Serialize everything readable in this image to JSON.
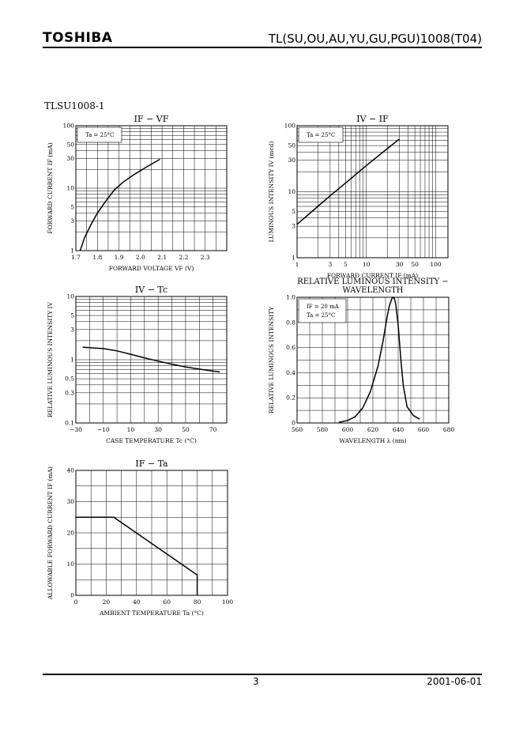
{
  "header": {
    "logo": "TOSHIBA",
    "title": "TL(SU,OU,AU,YU,GU,PGU)1008(T04)"
  },
  "part_number": "TLSU1008-1",
  "footer": {
    "page": "3",
    "date": "2001-06-01"
  },
  "chart_data": [
    {
      "id": "if_vf",
      "type": "line",
      "title": "IF  −  VF",
      "xlabel": "FORWARD VOLTAGE   VF   (V)",
      "ylabel": "FORWARD CURRENT   IF   (mA)",
      "xscale": "linear",
      "yscale": "log",
      "xlim": [
        1.7,
        2.4
      ],
      "ylim": [
        1,
        100
      ],
      "xticks": [
        1.7,
        1.8,
        1.9,
        2.0,
        2.1,
        2.2,
        2.3
      ],
      "xticklabels": [
        "1.7",
        "1.8",
        "1.9",
        "2.0",
        "2.1",
        "2.2",
        "2.3"
      ],
      "yticks": [
        1,
        3,
        5,
        10,
        30,
        50,
        100
      ],
      "yticklabels": [
        "1",
        "3",
        "5",
        "10",
        "30",
        "50",
        "100"
      ],
      "annotation": "Ta = 25°C",
      "series": [
        {
          "name": "IF",
          "x": [
            1.72,
            1.74,
            1.77,
            1.8,
            1.84,
            1.88,
            1.92,
            1.97,
            2.03,
            2.09
          ],
          "y": [
            1,
            1.6,
            2.6,
            4.0,
            6.3,
            9.5,
            12.5,
            16.5,
            22,
            29
          ]
        }
      ]
    },
    {
      "id": "iv_if",
      "type": "line",
      "title": "IV  −  IF",
      "xlabel": "FORWARD CURRENT   IF   (mA)",
      "ylabel": "LUMINOUS INTENSITY   IV   (mcd)",
      "xscale": "log",
      "yscale": "log",
      "xlim": [
        1,
        150
      ],
      "ylim": [
        1,
        100
      ],
      "xticks": [
        1,
        3,
        5,
        10,
        30,
        50,
        100
      ],
      "xticklabels": [
        "1",
        "3",
        "5",
        "10",
        "30",
        "50",
        "100"
      ],
      "yticks": [
        1,
        3,
        5,
        10,
        30,
        50,
        100
      ],
      "yticklabels": [
        "1",
        "3",
        "5",
        "10",
        "30",
        "50",
        "100"
      ],
      "annotation": "Ta = 25°C",
      "series": [
        {
          "name": "IV",
          "x": [
            1,
            2,
            3,
            5,
            10,
            20,
            30
          ],
          "y": [
            3.2,
            6.0,
            8.7,
            13.5,
            25,
            45,
            63
          ]
        }
      ]
    },
    {
      "id": "iv_tc",
      "type": "line",
      "title": "IV  −  Tc",
      "xlabel": "CASE TEMPERATURE   Tc   (°C)",
      "ylabel": "RELATIVE LUMINOUS INTENSITY   IV",
      "xscale": "linear",
      "yscale": "log",
      "xlim": [
        -30,
        80
      ],
      "ylim": [
        0.1,
        10
      ],
      "xticks": [
        -30,
        -10,
        10,
        30,
        50,
        70
      ],
      "xticklabels": [
        "−30",
        "−10",
        "10",
        "30",
        "50",
        "70"
      ],
      "yticks": [
        0.1,
        0.3,
        0.5,
        1,
        3,
        5,
        10
      ],
      "yticklabels": [
        "0.1",
        "0.3",
        "0.5",
        "1",
        "3",
        "5",
        "10"
      ],
      "series": [
        {
          "name": "IV",
          "x": [
            -25,
            -10,
            0,
            10,
            20,
            30,
            40,
            50,
            60,
            70,
            75
          ],
          "y": [
            1.58,
            1.5,
            1.38,
            1.22,
            1.07,
            0.95,
            0.85,
            0.77,
            0.71,
            0.66,
            0.64
          ]
        }
      ]
    },
    {
      "id": "rel_wavelength",
      "type": "line",
      "title": "RELATIVE LUMINOUS INTENSITY  −",
      "subtitle": "WAVELENGTH",
      "xlabel": "WAVELENGTH   λ   (nm)",
      "ylabel": "RELATIVE LUMINOUS INTENSITY",
      "xscale": "linear",
      "yscale": "linear",
      "xlim": [
        560,
        680
      ],
      "ylim": [
        0,
        1.0
      ],
      "xticks": [
        560,
        580,
        600,
        620,
        640,
        660,
        680
      ],
      "xticklabels": [
        "560",
        "580",
        "600",
        "620",
        "640",
        "660",
        "680"
      ],
      "yticks": [
        0,
        0.2,
        0.4,
        0.6,
        0.8,
        1.0
      ],
      "yticklabels": [
        "0",
        "0.2",
        "0.4",
        "0.6",
        "0.8",
        "1.0"
      ],
      "annotation": [
        "IF = 20 mA",
        "Ta = 25°C"
      ],
      "series": [
        {
          "name": "relative",
          "x": [
            593,
            600,
            606,
            612,
            618,
            624,
            628,
            631,
            633,
            635,
            636,
            637,
            638,
            640,
            642,
            644,
            647,
            652,
            657
          ],
          "y": [
            0.005,
            0.02,
            0.05,
            0.12,
            0.25,
            0.45,
            0.65,
            0.83,
            0.93,
            0.99,
            1.0,
            0.99,
            0.95,
            0.78,
            0.52,
            0.3,
            0.13,
            0.06,
            0.03
          ]
        }
      ]
    },
    {
      "id": "if_ta",
      "type": "line",
      "title": "IF  −  Ta",
      "xlabel": "AMBIENT TEMPERATURE   Ta   (°C)",
      "ylabel": "ALLOWABLE FORWARD CURRENT   IF   (mA)",
      "xscale": "linear",
      "yscale": "linear",
      "xlim": [
        0,
        100
      ],
      "ylim": [
        0,
        40
      ],
      "xticks": [
        0,
        20,
        40,
        60,
        80,
        100
      ],
      "xticklabels": [
        "0",
        "20",
        "40",
        "60",
        "80",
        "100"
      ],
      "yticks": [
        0,
        10,
        20,
        30,
        40
      ],
      "yticklabels": [
        "0",
        "10",
        "20",
        "30",
        "40"
      ],
      "series": [
        {
          "name": "IF max",
          "x": [
            0,
            25,
            80,
            80
          ],
          "y": [
            25,
            25,
            6.5,
            0
          ]
        }
      ]
    }
  ]
}
